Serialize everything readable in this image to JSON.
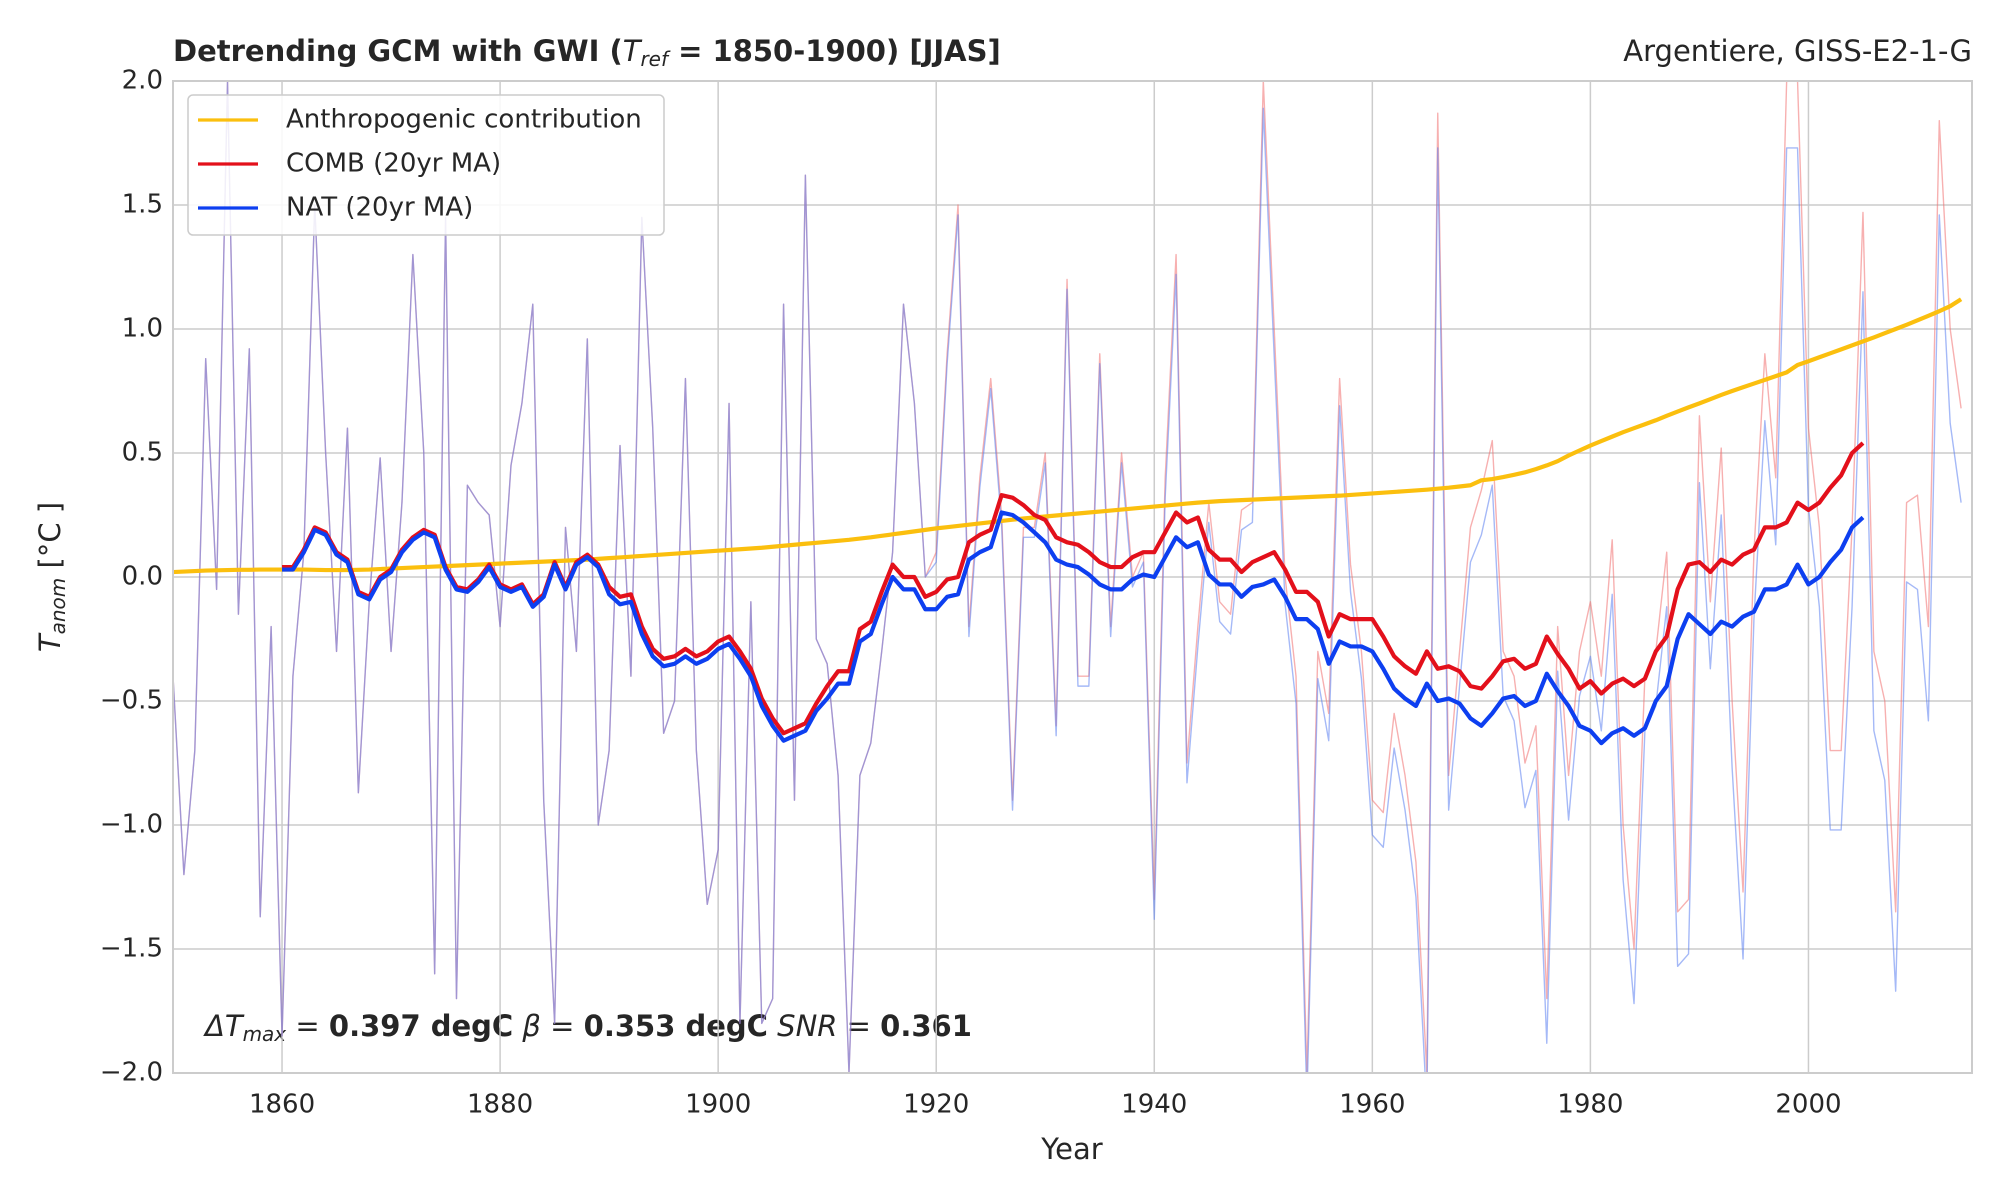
{
  "chart_data": {
    "type": "line",
    "title": [
      "Detrending GCM with GWI (",
      "T",
      "ref",
      " = 1850-1900) [JJAS]"
    ],
    "subtitle": "Argentiere, GISS-E2-1-G",
    "xlabel": "Year",
    "ylabel": [
      "T",
      "anom",
      " [°C ]"
    ],
    "annotation": [
      "ΔT",
      "max",
      " = ",
      "0.397 degC",
      " β = ",
      "0.353 degC",
      " SNR = ",
      " 0.361"
    ],
    "xlim": [
      1850,
      2015
    ],
    "ylim": [
      -2,
      2
    ],
    "xticks": [
      1860,
      1880,
      1900,
      1920,
      1940,
      1960,
      1980,
      2000
    ],
    "yticks": [
      {
        "value": -2,
        "label": "−2.0"
      },
      {
        "value": -1.5,
        "label": "−1.5"
      },
      {
        "value": -1,
        "label": "−1.0"
      },
      {
        "value": -0.5,
        "label": "−0.5"
      },
      {
        "value": 0,
        "label": "0.0"
      },
      {
        "value": 0.5,
        "label": "0.5"
      },
      {
        "value": 1,
        "label": "1.0"
      },
      {
        "value": 1.5,
        "label": "1.5"
      },
      {
        "value": 2,
        "label": "2.0"
      }
    ],
    "grid": true,
    "legend": "upper left",
    "x": [
      1850,
      1851,
      1852,
      1853,
      1854,
      1855,
      1856,
      1857,
      1858,
      1859,
      1860,
      1861,
      1862,
      1863,
      1864,
      1865,
      1866,
      1867,
      1868,
      1869,
      1870,
      1871,
      1872,
      1873,
      1874,
      1875,
      1876,
      1877,
      1878,
      1879,
      1880,
      1881,
      1882,
      1883,
      1884,
      1885,
      1886,
      1887,
      1888,
      1889,
      1890,
      1891,
      1892,
      1893,
      1894,
      1895,
      1896,
      1897,
      1898,
      1899,
      1900,
      1901,
      1902,
      1903,
      1904,
      1905,
      1906,
      1907,
      1908,
      1909,
      1910,
      1911,
      1912,
      1913,
      1914,
      1915,
      1916,
      1917,
      1918,
      1919,
      1920,
      1921,
      1922,
      1923,
      1924,
      1925,
      1926,
      1927,
      1928,
      1929,
      1930,
      1931,
      1932,
      1933,
      1934,
      1935,
      1936,
      1937,
      1938,
      1939,
      1940,
      1941,
      1942,
      1943,
      1944,
      1945,
      1946,
      1947,
      1948,
      1949,
      1950,
      1951,
      1952,
      1953,
      1954,
      1955,
      1956,
      1957,
      1958,
      1959,
      1960,
      1961,
      1962,
      1963,
      1964,
      1965,
      1966,
      1967,
      1968,
      1969,
      1970,
      1971,
      1972,
      1973,
      1974,
      1975,
      1976,
      1977,
      1978,
      1979,
      1980,
      1981,
      1982,
      1983,
      1984,
      1985,
      1986,
      1987,
      1988,
      1989,
      1990,
      1991,
      1992,
      1993,
      1994,
      1995,
      1996,
      1997,
      1998,
      1999,
      2000,
      2001,
      2002,
      2003,
      2004,
      2005,
      2006,
      2007,
      2008,
      2009,
      2010,
      2011,
      2012,
      2013,
      2014
    ],
    "series": [
      {
        "color": "#f07070",
        "width": 1,
        "opacity": 0.55,
        "values": [
          -0.4,
          -1.2,
          -0.7,
          0.88,
          -0.05,
          2.0,
          -0.15,
          0.92,
          -1.37,
          -0.2,
          -1.85,
          -0.4,
          0.1,
          1.5,
          0.5,
          -0.3,
          0.6,
          -0.87,
          -0.1,
          0.48,
          -0.3,
          0.3,
          1.3,
          0.5,
          -1.6,
          1.45,
          -1.7,
          0.37,
          0.3,
          0.25,
          -0.2,
          0.45,
          0.7,
          1.1,
          -0.9,
          -1.8,
          0.2,
          -0.3,
          0.96,
          -1.0,
          -0.7,
          0.53,
          -0.4,
          1.45,
          0.6,
          -0.63,
          -0.5,
          0.8,
          -0.7,
          -1.32,
          -1.1,
          0.7,
          -1.8,
          -0.1,
          -1.8,
          -1.7,
          1.1,
          -0.9,
          1.62,
          -0.25,
          -0.35,
          -0.8,
          -2.0,
          -0.8,
          -0.67,
          -0.3,
          0.1,
          1.1,
          0.7,
          0.0,
          0.1,
          0.9,
          1.5,
          -0.2,
          0.4,
          0.8,
          0.25,
          -0.9,
          0.2,
          0.2,
          0.5,
          -0.6,
          1.2,
          -0.4,
          -0.4,
          0.9,
          -0.2,
          0.5,
          0.0,
          0.1,
          -1.3,
          0.4,
          1.3,
          -0.75,
          -0.2,
          0.3,
          -0.1,
          -0.15,
          0.27,
          0.3,
          2.0,
          1.0,
          0.0,
          -0.4,
          -2.0,
          -0.3,
          -0.55,
          0.8,
          0.05,
          -0.3,
          -0.9,
          -0.95,
          -0.55,
          -0.8,
          -1.15,
          -2.0,
          1.87,
          -0.8,
          -0.3,
          0.2,
          0.35,
          0.55,
          -0.3,
          -0.4,
          -0.75,
          -0.6,
          -1.7,
          -0.2,
          -0.8,
          -0.3,
          -0.1,
          -0.4,
          0.15,
          -1.0,
          -1.5,
          -0.4,
          -0.3,
          0.1,
          -1.35,
          -1.3,
          0.65,
          -0.1,
          0.52,
          -0.5,
          -1.27,
          0.1,
          0.9,
          0.4,
          2.0,
          2.0,
          0.6,
          0.2,
          -0.7,
          -0.7,
          0.2,
          1.47,
          -0.3,
          -0.5,
          -1.35,
          0.3,
          0.33,
          -0.2,
          1.84,
          1.0,
          0.68
        ]
      },
      {
        "color": "#5b7ff0",
        "width": 1,
        "opacity": 0.55,
        "values": [
          -0.4,
          -1.2,
          -0.7,
          0.88,
          -0.05,
          2.0,
          -0.15,
          0.92,
          -1.37,
          -0.2,
          -1.85,
          -0.4,
          0.1,
          1.5,
          0.5,
          -0.3,
          0.6,
          -0.87,
          -0.1,
          0.48,
          -0.3,
          0.3,
          1.3,
          0.5,
          -1.6,
          1.45,
          -1.7,
          0.37,
          0.3,
          0.25,
          -0.2,
          0.45,
          0.7,
          1.1,
          -0.9,
          -1.8,
          0.2,
          -0.3,
          0.96,
          -1.0,
          -0.7,
          0.53,
          -0.4,
          1.45,
          0.6,
          -0.63,
          -0.5,
          0.8,
          -0.7,
          -1.32,
          -1.1,
          0.7,
          -1.8,
          -0.1,
          -1.8,
          -1.7,
          1.1,
          -0.9,
          1.62,
          -0.25,
          -0.35,
          -0.8,
          -2.0,
          -0.8,
          -0.67,
          -0.3,
          0.1,
          1.1,
          0.7,
          0.0,
          0.06,
          0.86,
          1.46,
          -0.24,
          0.36,
          0.76,
          0.21,
          -0.94,
          0.16,
          0.16,
          0.46,
          -0.64,
          1.16,
          -0.44,
          -0.44,
          0.86,
          -0.24,
          0.46,
          -0.04,
          0.06,
          -1.38,
          0.32,
          1.22,
          -0.83,
          -0.28,
          0.22,
          -0.18,
          -0.23,
          0.19,
          0.22,
          1.89,
          0.89,
          -0.11,
          -0.51,
          -2.11,
          -0.41,
          -0.66,
          0.69,
          -0.06,
          -0.41,
          -1.04,
          -1.09,
          -0.69,
          -0.94,
          -1.29,
          -2.14,
          1.73,
          -0.94,
          -0.44,
          0.06,
          0.17,
          0.37,
          -0.48,
          -0.58,
          -0.93,
          -0.78,
          -1.88,
          -0.38,
          -0.98,
          -0.48,
          -0.32,
          -0.62,
          -0.07,
          -1.22,
          -1.72,
          -0.62,
          -0.52,
          -0.12,
          -1.57,
          -1.52,
          0.38,
          -0.37,
          0.25,
          -0.77,
          -1.54,
          -0.17,
          0.63,
          0.13,
          1.73,
          1.73,
          0.28,
          -0.12,
          -1.02,
          -1.02,
          -0.12,
          1.15,
          -0.62,
          -0.82,
          -1.67,
          -0.02,
          -0.05,
          -0.58,
          1.46,
          0.62,
          0.3
        ]
      },
      {
        "name": "Anthropogenic contribution",
        "color": "#fbbf0e",
        "width": 3,
        "opacity": 1,
        "values": [
          0.02,
          0.022,
          0.024,
          0.026,
          0.027,
          0.028,
          0.029,
          0.029,
          0.03,
          0.03,
          0.03,
          0.03,
          0.03,
          0.029,
          0.028,
          0.028,
          0.028,
          0.029,
          0.03,
          0.032,
          0.034,
          0.036,
          0.038,
          0.04,
          0.042,
          0.044,
          0.046,
          0.048,
          0.05,
          0.052,
          0.054,
          0.056,
          0.058,
          0.06,
          0.062,
          0.064,
          0.066,
          0.068,
          0.07,
          0.073,
          0.076,
          0.079,
          0.082,
          0.085,
          0.088,
          0.091,
          0.094,
          0.097,
          0.1,
          0.103,
          0.106,
          0.109,
          0.112,
          0.115,
          0.118,
          0.122,
          0.126,
          0.13,
          0.134,
          0.138,
          0.142,
          0.146,
          0.15,
          0.155,
          0.16,
          0.166,
          0.172,
          0.178,
          0.184,
          0.19,
          0.196,
          0.201,
          0.206,
          0.211,
          0.216,
          0.221,
          0.226,
          0.231,
          0.236,
          0.24,
          0.244,
          0.248,
          0.252,
          0.256,
          0.26,
          0.264,
          0.268,
          0.272,
          0.276,
          0.28,
          0.284,
          0.288,
          0.292,
          0.296,
          0.3,
          0.303,
          0.306,
          0.308,
          0.31,
          0.312,
          0.314,
          0.316,
          0.318,
          0.32,
          0.322,
          0.324,
          0.326,
          0.328,
          0.331,
          0.334,
          0.337,
          0.34,
          0.343,
          0.346,
          0.349,
          0.352,
          0.356,
          0.36,
          0.365,
          0.37,
          0.39,
          0.395,
          0.403,
          0.412,
          0.422,
          0.435,
          0.45,
          0.467,
          0.49,
          0.51,
          0.53,
          0.548,
          0.566,
          0.584,
          0.6,
          0.616,
          0.632,
          0.65,
          0.667,
          0.684,
          0.7,
          0.717,
          0.734,
          0.75,
          0.765,
          0.78,
          0.795,
          0.81,
          0.825,
          0.855,
          0.87,
          0.886,
          0.902,
          0.918,
          0.934,
          0.95,
          0.966,
          0.983,
          1.0,
          1.017,
          1.035,
          1.053,
          1.072,
          1.092,
          1.12
        ]
      },
      {
        "name": "COMB (20yr MA)",
        "color": "#e3101b",
        "width": 3,
        "opacity": 1,
        "values": [
          null,
          null,
          null,
          null,
          null,
          null,
          null,
          null,
          null,
          null,
          0.04,
          0.04,
          0.11,
          0.2,
          0.18,
          0.1,
          0.07,
          -0.06,
          -0.08,
          0.0,
          0.03,
          0.11,
          0.16,
          0.19,
          0.17,
          0.04,
          -0.04,
          -0.05,
          -0.01,
          0.05,
          -0.03,
          -0.05,
          -0.03,
          -0.11,
          -0.07,
          0.06,
          -0.04,
          0.06,
          0.09,
          0.05,
          -0.04,
          -0.08,
          -0.07,
          -0.2,
          -0.29,
          -0.33,
          -0.32,
          -0.29,
          -0.32,
          -0.3,
          -0.26,
          -0.24,
          -0.3,
          -0.37,
          -0.49,
          -0.57,
          -0.63,
          -0.61,
          -0.59,
          -0.51,
          -0.44,
          -0.38,
          -0.38,
          -0.21,
          -0.18,
          -0.06,
          0.05,
          0.0,
          0.0,
          -0.08,
          -0.06,
          -0.01,
          0.0,
          0.14,
          0.17,
          0.19,
          0.33,
          0.32,
          0.29,
          0.25,
          0.23,
          0.16,
          0.14,
          0.13,
          0.1,
          0.06,
          0.04,
          0.04,
          0.08,
          0.1,
          0.1,
          0.18,
          0.26,
          0.22,
          0.24,
          0.11,
          0.07,
          0.07,
          0.02,
          0.06,
          0.08,
          0.1,
          0.03,
          -0.06,
          -0.06,
          -0.1,
          -0.24,
          -0.15,
          -0.17,
          -0.17,
          -0.17,
          -0.24,
          -0.32,
          -0.36,
          -0.39,
          -0.3,
          -0.37,
          -0.36,
          -0.38,
          -0.44,
          -0.45,
          -0.4,
          -0.34,
          -0.33,
          -0.37,
          -0.35,
          -0.24,
          -0.31,
          -0.37,
          -0.45,
          -0.42,
          -0.47,
          -0.43,
          -0.41,
          -0.44,
          -0.41,
          -0.3,
          -0.24,
          -0.05,
          0.05,
          0.06,
          0.02,
          0.07,
          0.05,
          0.09,
          0.11,
          0.2,
          0.2,
          0.22,
          0.3,
          0.27,
          0.3,
          0.36,
          0.41,
          0.5,
          0.54,
          null,
          null,
          null,
          null,
          null,
          null,
          null,
          null,
          null
        ]
      },
      {
        "name": "NAT (20yr MA)",
        "color": "#0d3ff0",
        "width": 3,
        "opacity": 1,
        "values": [
          null,
          null,
          null,
          null,
          null,
          null,
          null,
          null,
          null,
          null,
          0.03,
          0.03,
          0.1,
          0.19,
          0.17,
          0.09,
          0.06,
          -0.07,
          -0.09,
          -0.01,
          0.02,
          0.1,
          0.15,
          0.18,
          0.16,
          0.03,
          -0.05,
          -0.06,
          -0.02,
          0.04,
          -0.04,
          -0.06,
          -0.04,
          -0.12,
          -0.08,
          0.05,
          -0.05,
          0.05,
          0.08,
          0.04,
          -0.07,
          -0.11,
          -0.1,
          -0.23,
          -0.32,
          -0.36,
          -0.35,
          -0.32,
          -0.35,
          -0.33,
          -0.29,
          -0.27,
          -0.33,
          -0.4,
          -0.52,
          -0.6,
          -0.66,
          -0.64,
          -0.62,
          -0.54,
          -0.49,
          -0.43,
          -0.43,
          -0.26,
          -0.23,
          -0.11,
          0.0,
          -0.05,
          -0.05,
          -0.13,
          -0.13,
          -0.08,
          -0.07,
          0.07,
          0.1,
          0.12,
          0.26,
          0.25,
          0.22,
          0.18,
          0.14,
          0.07,
          0.05,
          0.04,
          0.01,
          -0.03,
          -0.05,
          -0.05,
          -0.01,
          0.01,
          0.0,
          0.08,
          0.16,
          0.12,
          0.14,
          0.01,
          -0.03,
          -0.03,
          -0.08,
          -0.04,
          -0.03,
          -0.01,
          -0.08,
          -0.17,
          -0.17,
          -0.21,
          -0.35,
          -0.26,
          -0.28,
          -0.28,
          -0.3,
          -0.37,
          -0.45,
          -0.49,
          -0.52,
          -0.43,
          -0.5,
          -0.49,
          -0.51,
          -0.57,
          -0.6,
          -0.55,
          -0.49,
          -0.48,
          -0.52,
          -0.5,
          -0.39,
          -0.46,
          -0.52,
          -0.6,
          -0.62,
          -0.67,
          -0.63,
          -0.61,
          -0.64,
          -0.61,
          -0.5,
          -0.44,
          -0.25,
          -0.15,
          -0.19,
          -0.23,
          -0.18,
          -0.2,
          -0.16,
          -0.14,
          -0.05,
          -0.05,
          -0.03,
          0.05,
          -0.03,
          0.0,
          0.06,
          0.11,
          0.2,
          0.24,
          null,
          null,
          null,
          null,
          null,
          null,
          null,
          null,
          null
        ]
      }
    ]
  }
}
